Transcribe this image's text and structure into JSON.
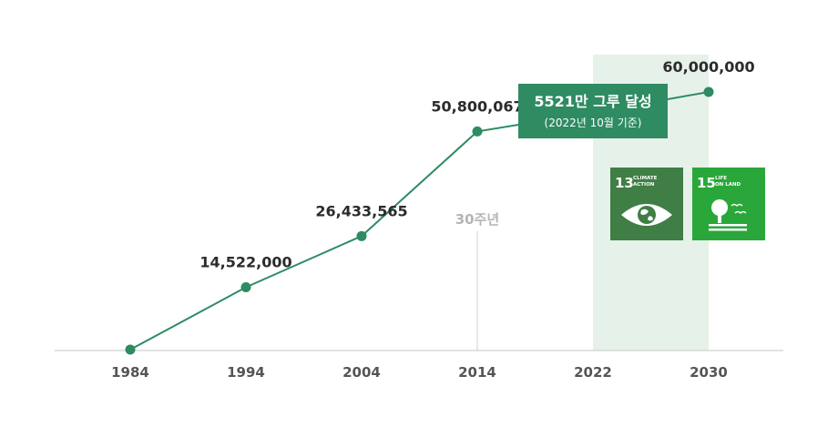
{
  "chart_data": {
    "type": "line",
    "x": [
      "1984",
      "1994",
      "2004",
      "2014",
      "2022",
      "2030"
    ],
    "values": [
      0,
      14522000,
      26433565,
      50800067,
      55210000,
      60000000
    ],
    "data_labels": [
      "",
      "14,522,000",
      "26,433,565",
      "50,800,067",
      "",
      "60,000,000"
    ],
    "ylim": [
      0,
      60000000
    ],
    "line_color": "#2e8b62",
    "highlight_color": "#e6f2e9",
    "axis_color": "#d0d0d0",
    "annotation": {
      "text": "30주년",
      "x": "2014"
    },
    "callout": {
      "title": "5521만 그루 달성",
      "subtitle": "(2022년 10월 기준)",
      "x": "2022",
      "color": "#2e8b62"
    },
    "highlight_range": [
      "2022",
      "2030"
    ]
  },
  "sdg_badges": [
    {
      "number": "13",
      "line1": "CLIMATE",
      "line2": "ACTION",
      "color": "#3f7e44",
      "icon": "eye-globe-icon"
    },
    {
      "number": "15",
      "line1": "LIFE",
      "line2": "ON LAND",
      "color": "#2aa73a",
      "icon": "tree-birds-icon"
    }
  ]
}
